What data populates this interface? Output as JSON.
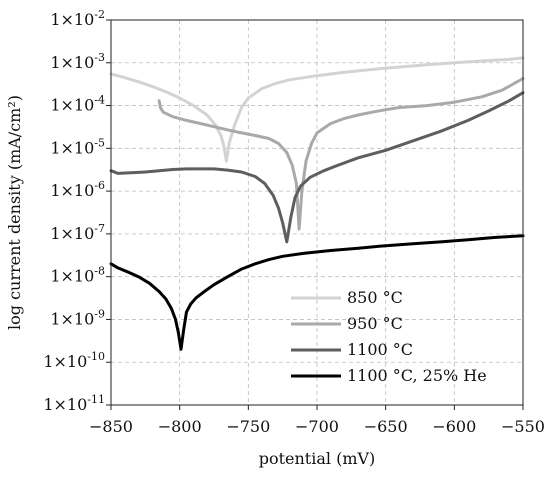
{
  "chart_data": {
    "type": "line",
    "title": "",
    "xlabel": "potential (mV)",
    "ylabel": "log current density (mA/cm²)",
    "xlim": [
      -850,
      -550
    ],
    "ylim_log10": [
      -11,
      -2
    ],
    "y_scale": "log",
    "grid": true,
    "legend_placement": "bottom-right",
    "x_ticks": [
      {
        "value": -850,
        "label": "−850"
      },
      {
        "value": -800,
        "label": "−800"
      },
      {
        "value": -750,
        "label": "−750"
      },
      {
        "value": -700,
        "label": "−700"
      },
      {
        "value": -650,
        "label": "−650"
      },
      {
        "value": -600,
        "label": "−600"
      },
      {
        "value": -550,
        "label": "−550"
      }
    ],
    "y_ticks": [
      {
        "exp": -2,
        "base": "1×10",
        "sup": "-2"
      },
      {
        "exp": -3,
        "base": "1×10",
        "sup": "-3"
      },
      {
        "exp": -4,
        "base": "1×10",
        "sup": "-4"
      },
      {
        "exp": -5,
        "base": "1×10",
        "sup": "-5"
      },
      {
        "exp": -6,
        "base": "1×10",
        "sup": "-6"
      },
      {
        "exp": -7,
        "base": "1×10",
        "sup": "-7"
      },
      {
        "exp": -8,
        "base": "1×10",
        "sup": "-8"
      },
      {
        "exp": -9,
        "base": "1×10",
        "sup": "-9"
      },
      {
        "exp": -10,
        "base": "1×10",
        "sup": "-10"
      },
      {
        "exp": -11,
        "base": "1×10",
        "sup": "-11"
      }
    ],
    "series": [
      {
        "name": "850 °C",
        "color": "#d3d3d3",
        "points": [
          [
            -850,
            0.00055
          ],
          [
            -840,
            0.00045
          ],
          [
            -830,
            0.00036
          ],
          [
            -820,
            0.00028
          ],
          [
            -810,
            0.00021
          ],
          [
            -800,
            0.00015
          ],
          [
            -790,
            0.0001
          ],
          [
            -780,
            6e-05
          ],
          [
            -774,
            3.5e-05
          ],
          [
            -770,
            2e-05
          ],
          [
            -768,
            1.2e-05
          ],
          [
            -766,
            5e-06
          ],
          [
            -764,
            1.3e-05
          ],
          [
            -760,
            3.5e-05
          ],
          [
            -755,
            9e-05
          ],
          [
            -750,
            0.00015
          ],
          [
            -740,
            0.00025
          ],
          [
            -730,
            0.00033
          ],
          [
            -720,
            0.0004
          ],
          [
            -700,
            0.0005
          ],
          [
            -680,
            0.0006
          ],
          [
            -650,
            0.00075
          ],
          [
            -620,
            0.0009
          ],
          [
            -600,
            0.001
          ],
          [
            -580,
            0.0011
          ],
          [
            -560,
            0.0012
          ],
          [
            -550,
            0.0013
          ]
        ]
      },
      {
        "name": "950 °C",
        "color": "#a9a9a9",
        "points": [
          [
            -815,
            0.00013
          ],
          [
            -814,
            9e-05
          ],
          [
            -812,
            7e-05
          ],
          [
            -805,
            5.5e-05
          ],
          [
            -795,
            4.5e-05
          ],
          [
            -785,
            3.8e-05
          ],
          [
            -775,
            3.2e-05
          ],
          [
            -765,
            2.7e-05
          ],
          [
            -755,
            2.3e-05
          ],
          [
            -745,
            2e-05
          ],
          [
            -735,
            1.7e-05
          ],
          [
            -728,
            1.3e-05
          ],
          [
            -722,
            8e-06
          ],
          [
            -718,
            4e-06
          ],
          [
            -715,
            1.5e-06
          ],
          [
            -713,
            1.3e-07
          ],
          [
            -711,
            1e-06
          ],
          [
            -708,
            5e-06
          ],
          [
            -704,
            1.3e-05
          ],
          [
            -700,
            2.3e-05
          ],
          [
            -690,
            3.8e-05
          ],
          [
            -680,
            5e-05
          ],
          [
            -670,
            6e-05
          ],
          [
            -660,
            7e-05
          ],
          [
            -650,
            8e-05
          ],
          [
            -640,
            9e-05
          ],
          [
            -620,
            0.0001
          ],
          [
            -600,
            0.00012
          ],
          [
            -580,
            0.00016
          ],
          [
            -565,
            0.00023
          ],
          [
            -550,
            0.00043
          ]
        ]
      },
      {
        "name": "1100 °C",
        "color": "#5e5e5e",
        "points": [
          [
            -850,
            3e-06
          ],
          [
            -845,
            2.6e-06
          ],
          [
            -835,
            2.7e-06
          ],
          [
            -825,
            2.8e-06
          ],
          [
            -815,
            3e-06
          ],
          [
            -805,
            3.2e-06
          ],
          [
            -795,
            3.3e-06
          ],
          [
            -785,
            3.3e-06
          ],
          [
            -775,
            3.3e-06
          ],
          [
            -765,
            3.1e-06
          ],
          [
            -755,
            2.8e-06
          ],
          [
            -745,
            2.2e-06
          ],
          [
            -738,
            1.5e-06
          ],
          [
            -732,
            8e-07
          ],
          [
            -728,
            4e-07
          ],
          [
            -725,
            1.8e-07
          ],
          [
            -722,
            6.5e-08
          ],
          [
            -719,
            2.5e-07
          ],
          [
            -716,
            7e-07
          ],
          [
            -712,
            1.3e-06
          ],
          [
            -705,
            2.1e-06
          ],
          [
            -695,
            3e-06
          ],
          [
            -685,
            4e-06
          ],
          [
            -670,
            6e-06
          ],
          [
            -650,
            9e-06
          ],
          [
            -630,
            1.5e-05
          ],
          [
            -610,
            2.5e-05
          ],
          [
            -590,
            4.5e-05
          ],
          [
            -575,
            7.5e-05
          ],
          [
            -560,
            0.00013
          ],
          [
            -550,
            0.0002
          ]
        ]
      },
      {
        "name": "1100 °C, 25% He",
        "color": "#000000",
        "points": [
          [
            -850,
            2e-08
          ],
          [
            -845,
            1.6e-08
          ],
          [
            -838,
            1.3e-08
          ],
          [
            -830,
            1e-08
          ],
          [
            -822,
            7e-09
          ],
          [
            -815,
            4.5e-09
          ],
          [
            -810,
            3e-09
          ],
          [
            -806,
            1.8e-09
          ],
          [
            -803,
            1e-09
          ],
          [
            -801,
            5e-10
          ],
          [
            -799,
            2e-10
          ],
          [
            -797,
            6e-10
          ],
          [
            -795,
            1.5e-09
          ],
          [
            -792,
            2.3e-09
          ],
          [
            -788,
            3.2e-09
          ],
          [
            -782,
            4.5e-09
          ],
          [
            -775,
            6.5e-09
          ],
          [
            -765,
            1e-08
          ],
          [
            -755,
            1.5e-08
          ],
          [
            -745,
            2e-08
          ],
          [
            -735,
            2.5e-08
          ],
          [
            -725,
            3e-08
          ],
          [
            -710,
            3.5e-08
          ],
          [
            -690,
            4.1e-08
          ],
          [
            -670,
            4.6e-08
          ],
          [
            -650,
            5.3e-08
          ],
          [
            -630,
            5.9e-08
          ],
          [
            -610,
            6.5e-08
          ],
          [
            -590,
            7.3e-08
          ],
          [
            -570,
            8.3e-08
          ],
          [
            -550,
            9e-08
          ]
        ]
      }
    ]
  }
}
